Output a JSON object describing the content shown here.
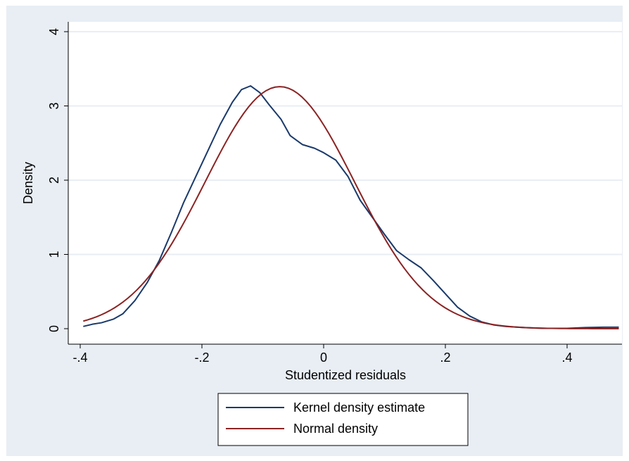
{
  "chart_data": {
    "type": "line",
    "title": "",
    "xlabel": "Studentized residuals",
    "ylabel": "Density",
    "xlim": [
      -0.4,
      0.49
    ],
    "ylim": [
      0,
      4
    ],
    "x_ticks": [
      -0.4,
      -0.2,
      0,
      0.2,
      0.4
    ],
    "x_tick_labels": [
      "-.4",
      "-.2",
      "0",
      ".2",
      ".4"
    ],
    "y_ticks": [
      0,
      1,
      2,
      3,
      4
    ],
    "y_tick_labels": [
      "0",
      "1",
      "2",
      "3",
      "4"
    ],
    "grid": true,
    "legend_position": "bottom",
    "series": [
      {
        "name": "Kernel density estimate",
        "color": "#1a3a6b",
        "points": [
          [
            -0.395,
            0.03
          ],
          [
            -0.38,
            0.06
          ],
          [
            -0.365,
            0.08
          ],
          [
            -0.345,
            0.13
          ],
          [
            -0.33,
            0.2
          ],
          [
            -0.31,
            0.38
          ],
          [
            -0.29,
            0.62
          ],
          [
            -0.27,
            0.92
          ],
          [
            -0.25,
            1.3
          ],
          [
            -0.23,
            1.7
          ],
          [
            -0.21,
            2.05
          ],
          [
            -0.19,
            2.4
          ],
          [
            -0.17,
            2.75
          ],
          [
            -0.15,
            3.05
          ],
          [
            -0.135,
            3.22
          ],
          [
            -0.12,
            3.27
          ],
          [
            -0.105,
            3.18
          ],
          [
            -0.09,
            3.02
          ],
          [
            -0.07,
            2.82
          ],
          [
            -0.055,
            2.6
          ],
          [
            -0.035,
            2.48
          ],
          [
            -0.015,
            2.43
          ],
          [
            0,
            2.37
          ],
          [
            0.02,
            2.27
          ],
          [
            0.04,
            2.05
          ],
          [
            0.06,
            1.73
          ],
          [
            0.08,
            1.5
          ],
          [
            0.1,
            1.27
          ],
          [
            0.12,
            1.05
          ],
          [
            0.14,
            0.93
          ],
          [
            0.16,
            0.82
          ],
          [
            0.18,
            0.65
          ],
          [
            0.2,
            0.47
          ],
          [
            0.22,
            0.29
          ],
          [
            0.24,
            0.17
          ],
          [
            0.26,
            0.09
          ],
          [
            0.28,
            0.05
          ],
          [
            0.3,
            0.03
          ],
          [
            0.33,
            0.015
          ],
          [
            0.36,
            0.005
          ],
          [
            0.4,
            0.005
          ],
          [
            0.43,
            0.015
          ],
          [
            0.46,
            0.02
          ],
          [
            0.485,
            0.02
          ]
        ]
      },
      {
        "name": "Normal density",
        "color": "#8b2323",
        "mean": -0.072,
        "sd": 0.1227,
        "peak": 3.26,
        "x_range": [
          -0.395,
          0.485
        ]
      }
    ]
  }
}
